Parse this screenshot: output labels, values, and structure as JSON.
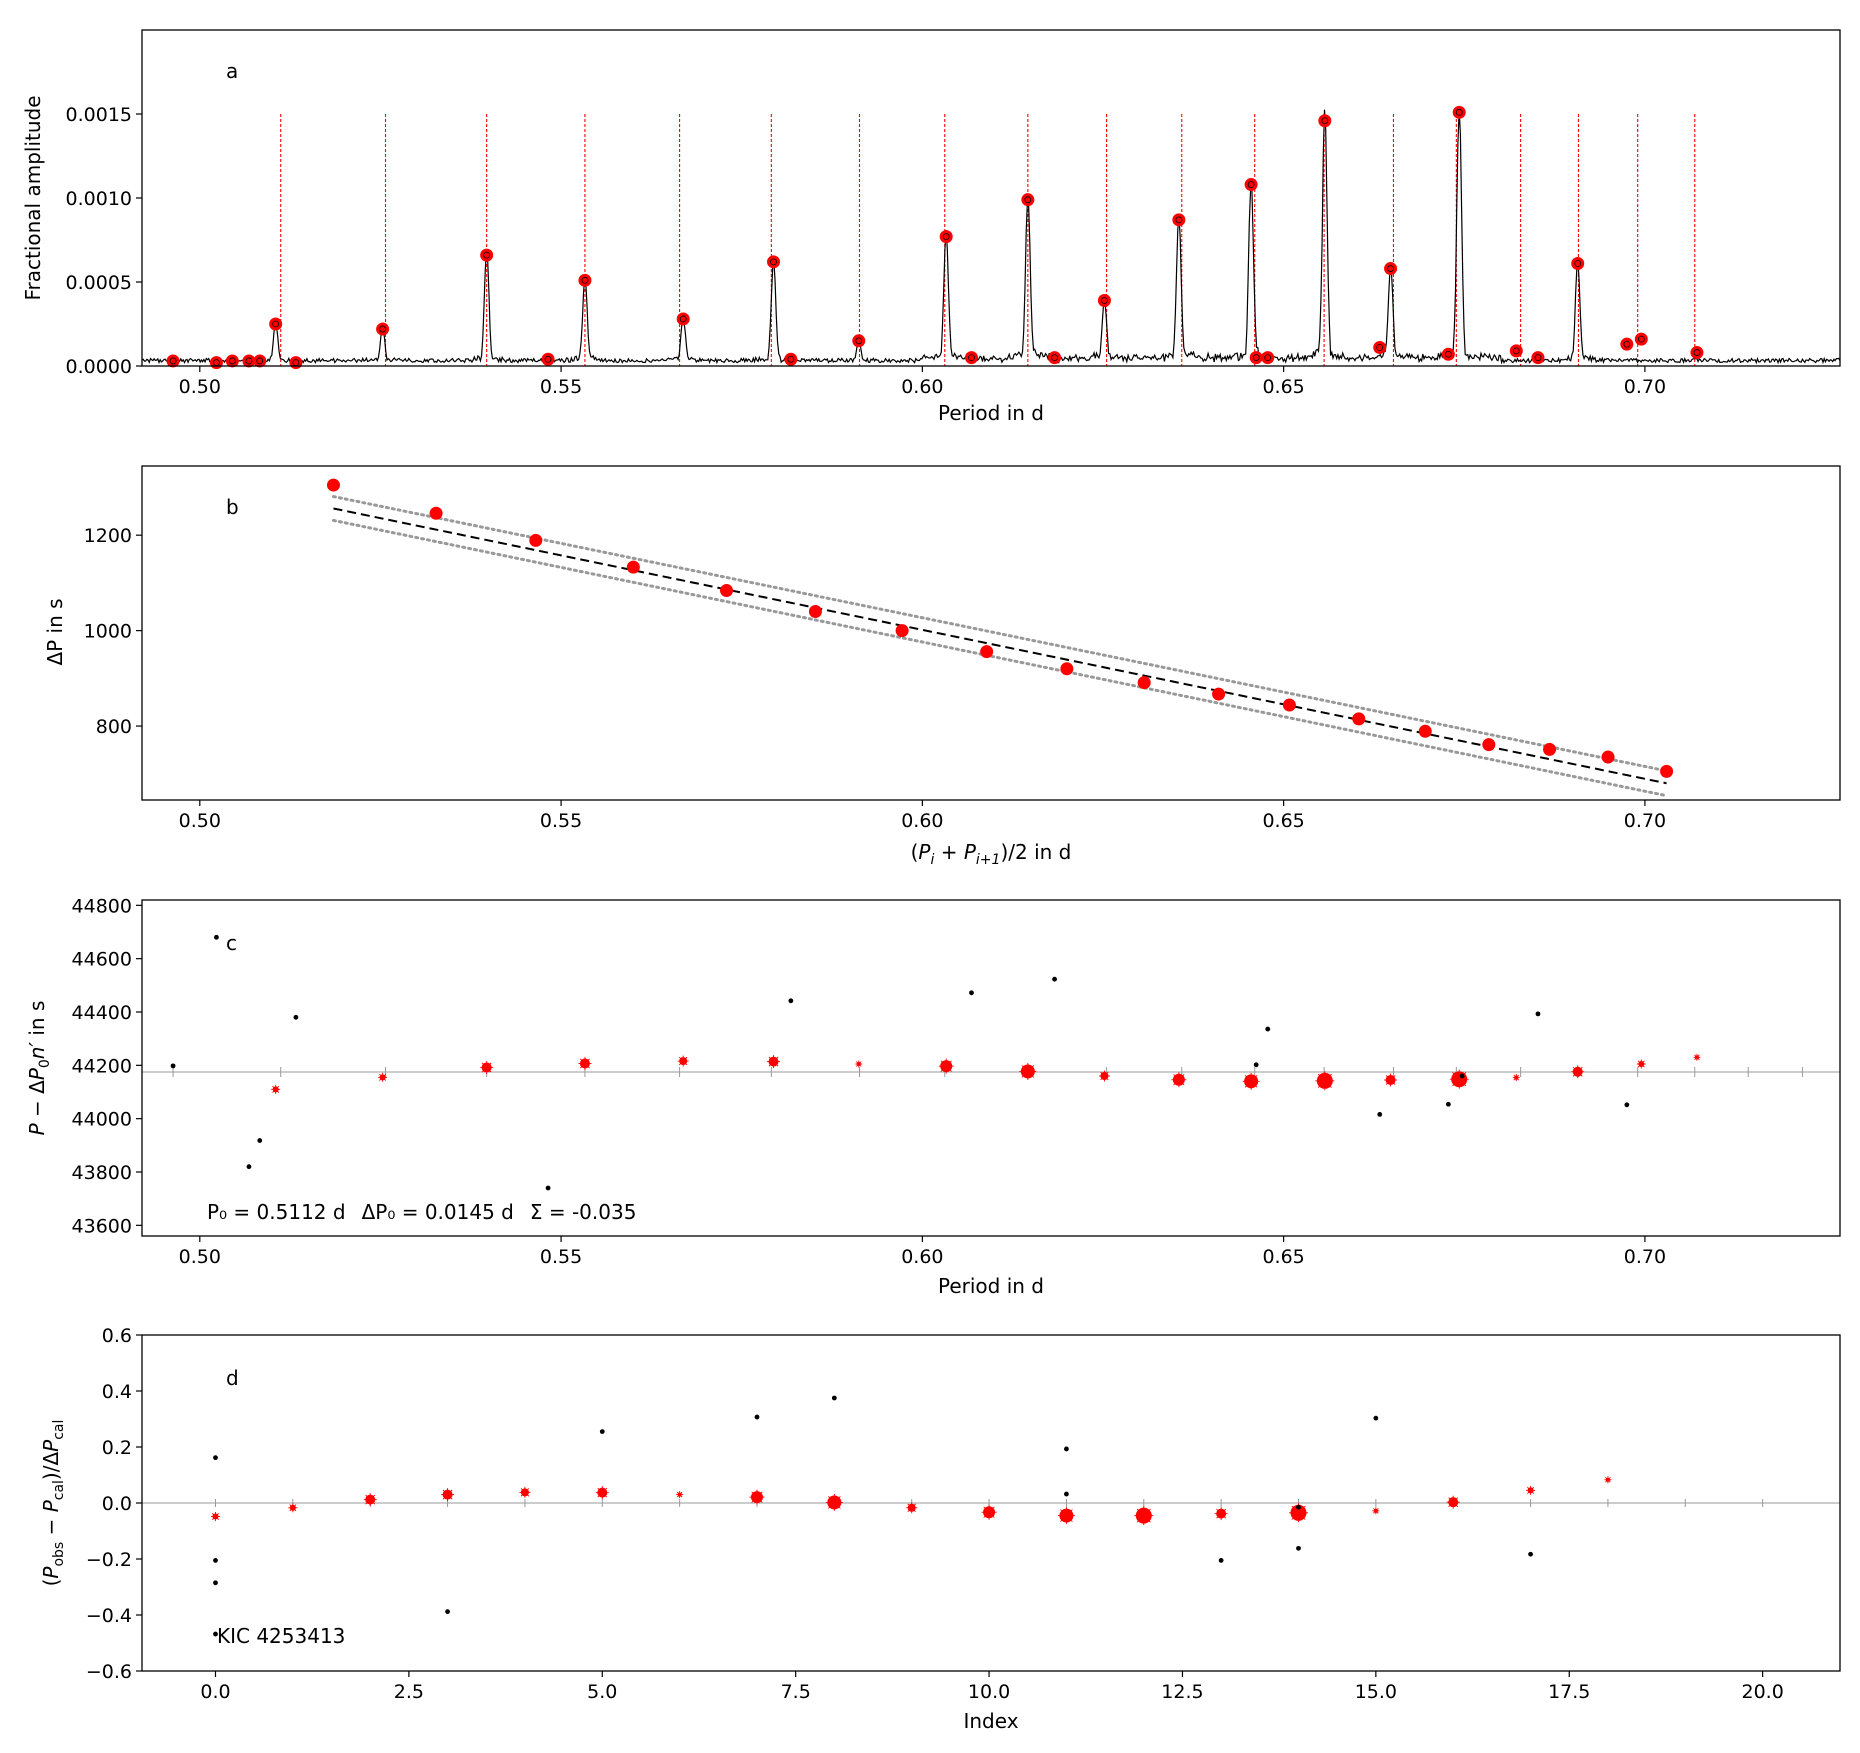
{
  "chart_data": [
    {
      "id": "a",
      "type": "line",
      "panel_label": "a",
      "xlabel": "Period in d",
      "ylabel": "Fractional amplitude",
      "xlim": [
        0.492,
        0.727
      ],
      "ylim": [
        0,
        0.002
      ],
      "xticks": [
        0.5,
        0.55,
        0.6,
        0.65,
        0.7
      ],
      "xtick_labels": [
        "0.50",
        "0.55",
        "0.60",
        "0.65",
        "0.70"
      ],
      "yticks": [
        0.0,
        0.0005,
        0.001,
        0.0015
      ],
      "ytick_labels": [
        "0.0000",
        "0.0005",
        "0.0010",
        "0.0015"
      ],
      "vlines": [
        0.5112,
        0.5257,
        0.5397,
        0.5533,
        0.5664,
        0.5791,
        0.5913,
        0.6031,
        0.6146,
        0.6255,
        0.6359,
        0.646,
        0.6556,
        0.6652,
        0.6739,
        0.6828,
        0.6908,
        0.699,
        0.7069
      ],
      "vline_top": 0.0015,
      "spectrum_peaks": [
        {
          "x": 0.5105,
          "y": 0.00025
        },
        {
          "x": 0.5253,
          "y": 0.00022
        },
        {
          "x": 0.5397,
          "y": 0.00066
        },
        {
          "x": 0.5533,
          "y": 0.00051
        },
        {
          "x": 0.5669,
          "y": 0.00028
        },
        {
          "x": 0.5794,
          "y": 0.00062
        },
        {
          "x": 0.5912,
          "y": 0.00015
        },
        {
          "x": 0.6033,
          "y": 0.00077
        },
        {
          "x": 0.6146,
          "y": 0.00099
        },
        {
          "x": 0.6252,
          "y": 0.00039
        },
        {
          "x": 0.6355,
          "y": 0.00087
        },
        {
          "x": 0.6455,
          "y": 0.00108
        },
        {
          "x": 0.6557,
          "y": 0.00146
        },
        {
          "x": 0.6648,
          "y": 0.00058
        },
        {
          "x": 0.6743,
          "y": 0.00151
        },
        {
          "x": 0.6907,
          "y": 0.00061
        }
      ],
      "circles": [
        {
          "x": 0.4963,
          "y": 3e-05
        },
        {
          "x": 0.5023,
          "y": 2e-05
        },
        {
          "x": 0.5045,
          "y": 3e-05
        },
        {
          "x": 0.5068,
          "y": 3e-05
        },
        {
          "x": 0.5083,
          "y": 3e-05
        },
        {
          "x": 0.5105,
          "y": 0.00025
        },
        {
          "x": 0.5133,
          "y": 2e-05
        },
        {
          "x": 0.5253,
          "y": 0.00022
        },
        {
          "x": 0.5397,
          "y": 0.00066
        },
        {
          "x": 0.5482,
          "y": 4e-05
        },
        {
          "x": 0.5533,
          "y": 0.00051
        },
        {
          "x": 0.5669,
          "y": 0.00028
        },
        {
          "x": 0.5794,
          "y": 0.00062
        },
        {
          "x": 0.5818,
          "y": 4e-05
        },
        {
          "x": 0.5912,
          "y": 0.00015
        },
        {
          "x": 0.6033,
          "y": 0.00077
        },
        {
          "x": 0.6068,
          "y": 5e-05
        },
        {
          "x": 0.6146,
          "y": 0.00099
        },
        {
          "x": 0.6183,
          "y": 5e-05
        },
        {
          "x": 0.6252,
          "y": 0.00039
        },
        {
          "x": 0.6355,
          "y": 0.00087
        },
        {
          "x": 0.6455,
          "y": 0.00108
        },
        {
          "x": 0.6462,
          "y": 5e-05
        },
        {
          "x": 0.6478,
          "y": 5e-05
        },
        {
          "x": 0.6557,
          "y": 0.00146
        },
        {
          "x": 0.6633,
          "y": 0.00011
        },
        {
          "x": 0.6648,
          "y": 0.00058
        },
        {
          "x": 0.6728,
          "y": 7e-05
        },
        {
          "x": 0.6743,
          "y": 0.00151
        },
        {
          "x": 0.6822,
          "y": 9e-05
        },
        {
          "x": 0.6852,
          "y": 5e-05
        },
        {
          "x": 0.6907,
          "y": 0.00061
        },
        {
          "x": 0.6975,
          "y": 0.00013
        },
        {
          "x": 0.6995,
          "y": 0.00016
        },
        {
          "x": 0.7072,
          "y": 8e-05
        }
      ]
    },
    {
      "id": "b",
      "type": "scatter",
      "panel_label": "b",
      "xlabel": "(P_i + P_i+1)/2 in d",
      "ylabel": "ΔP in s",
      "xlim": [
        0.492,
        0.727
      ],
      "ylim": [
        645,
        1345
      ],
      "xticks": [
        0.5,
        0.55,
        0.6,
        0.65,
        0.7
      ],
      "xtick_labels": [
        "0.50",
        "0.55",
        "0.60",
        "0.65",
        "0.70"
      ],
      "yticks": [
        800,
        1000,
        1200
      ],
      "ytick_labels": [
        "800",
        "1000",
        "1200"
      ],
      "points": [
        {
          "x": 0.5185,
          "y": 1305
        },
        {
          "x": 0.5327,
          "y": 1246
        },
        {
          "x": 0.5465,
          "y": 1189
        },
        {
          "x": 0.56,
          "y": 1133
        },
        {
          "x": 0.5729,
          "y": 1084
        },
        {
          "x": 0.5852,
          "y": 1040
        },
        {
          "x": 0.5972,
          "y": 1000
        },
        {
          "x": 0.6089,
          "y": 956
        },
        {
          "x": 0.62,
          "y": 920
        },
        {
          "x": 0.6307,
          "y": 891
        },
        {
          "x": 0.641,
          "y": 867
        },
        {
          "x": 0.6508,
          "y": 844
        },
        {
          "x": 0.6604,
          "y": 815
        },
        {
          "x": 0.6696,
          "y": 789
        },
        {
          "x": 0.6784,
          "y": 761
        },
        {
          "x": 0.6868,
          "y": 751
        },
        {
          "x": 0.6949,
          "y": 735
        },
        {
          "x": 0.703,
          "y": 705
        }
      ],
      "fit": {
        "x": [
          0.5185,
          0.703
        ],
        "y": [
          1256,
          680
        ]
      },
      "band_upper": {
        "x": [
          0.5185,
          0.703
        ],
        "y": [
          1281,
          706
        ]
      },
      "band_lower": {
        "x": [
          0.5185,
          0.703
        ],
        "y": [
          1231,
          654
        ]
      }
    },
    {
      "id": "c",
      "type": "scatter",
      "panel_label": "c",
      "xlabel": "Period in d",
      "ylabel": "P − ΔP0 n′ in s",
      "xlim": [
        0.492,
        0.727
      ],
      "ylim": [
        43560,
        44820
      ],
      "xticks": [
        0.5,
        0.55,
        0.6,
        0.65,
        0.7
      ],
      "xtick_labels": [
        "0.50",
        "0.55",
        "0.60",
        "0.65",
        "0.70"
      ],
      "yticks": [
        43600,
        43800,
        44000,
        44200,
        44400,
        44600,
        44800
      ],
      "ytick_labels": [
        "43600",
        "43800",
        "44000",
        "44200",
        "44400",
        "44600",
        "44800"
      ],
      "hline": 44175,
      "grey_ticks_x": [
        0.4963,
        0.5112,
        0.5257,
        0.5397,
        0.5533,
        0.5664,
        0.5791,
        0.5913,
        0.6031,
        0.6146,
        0.6255,
        0.6359,
        0.646,
        0.6556,
        0.6652,
        0.6739,
        0.6828,
        0.6908,
        0.699,
        0.7069,
        0.7143,
        0.7218
      ],
      "red_points": [
        {
          "x": 0.5105,
          "y": 44110,
          "s": 3
        },
        {
          "x": 0.5253,
          "y": 44155,
          "s": 3
        },
        {
          "x": 0.5397,
          "y": 44192,
          "s": 5
        },
        {
          "x": 0.5533,
          "y": 44207,
          "s": 5
        },
        {
          "x": 0.5669,
          "y": 44216,
          "s": 4
        },
        {
          "x": 0.5794,
          "y": 44214,
          "s": 5
        },
        {
          "x": 0.5912,
          "y": 44205,
          "s": 2
        },
        {
          "x": 0.6033,
          "y": 44197,
          "s": 6
        },
        {
          "x": 0.6146,
          "y": 44177,
          "s": 7
        },
        {
          "x": 0.6252,
          "y": 44160,
          "s": 4
        },
        {
          "x": 0.6355,
          "y": 44146,
          "s": 6
        },
        {
          "x": 0.6455,
          "y": 44140,
          "s": 7
        },
        {
          "x": 0.6557,
          "y": 44142,
          "s": 8
        },
        {
          "x": 0.6648,
          "y": 44145,
          "s": 5
        },
        {
          "x": 0.6743,
          "y": 44148,
          "s": 8
        },
        {
          "x": 0.6822,
          "y": 44154,
          "s": 2
        },
        {
          "x": 0.6907,
          "y": 44176,
          "s": 5
        },
        {
          "x": 0.6995,
          "y": 44205,
          "s": 3
        },
        {
          "x": 0.7072,
          "y": 44230,
          "s": 2
        }
      ],
      "black_points": [
        {
          "x": 0.4963,
          "y": 44198
        },
        {
          "x": 0.5023,
          "y": 44680
        },
        {
          "x": 0.5068,
          "y": 43820
        },
        {
          "x": 0.5083,
          "y": 43918
        },
        {
          "x": 0.5133,
          "y": 44380
        },
        {
          "x": 0.5482,
          "y": 43740
        },
        {
          "x": 0.5818,
          "y": 44442
        },
        {
          "x": 0.6068,
          "y": 44472
        },
        {
          "x": 0.6183,
          "y": 44523
        },
        {
          "x": 0.6462,
          "y": 44202
        },
        {
          "x": 0.6478,
          "y": 44336
        },
        {
          "x": 0.6633,
          "y": 44016
        },
        {
          "x": 0.6728,
          "y": 44054
        },
        {
          "x": 0.6747,
          "y": 44160
        },
        {
          "x": 0.6852,
          "y": 44393
        },
        {
          "x": 0.6975,
          "y": 44052
        }
      ],
      "annotation": {
        "p0": "P₀ = 0.5112 d",
        "dp0": "ΔP₀ = 0.0145 d",
        "sigma": "Σ = -0.035"
      }
    },
    {
      "id": "d",
      "type": "scatter",
      "panel_label": "d",
      "xlabel": "Index",
      "ylabel": "(P_obs − P_cal)/ΔP_cal",
      "xlim": [
        -0.95,
        21.0
      ],
      "ylim": [
        -0.6,
        0.6
      ],
      "xticks": [
        0.0,
        2.5,
        5.0,
        7.5,
        10.0,
        12.5,
        15.0,
        17.5,
        20.0
      ],
      "xtick_labels": [
        "0.0",
        "2.5",
        "5.0",
        "7.5",
        "10.0",
        "12.5",
        "15.0",
        "17.5",
        "20.0"
      ],
      "yticks": [
        -0.6,
        -0.4,
        -0.2,
        0.0,
        0.2,
        0.4,
        0.6
      ],
      "ytick_labels": [
        "−0.6",
        "−0.4",
        "−0.2",
        "0.0",
        "0.2",
        "0.4",
        "0.6"
      ],
      "hline": 0.0,
      "grey_ticks_x": [
        0,
        1,
        2,
        3,
        4,
        5,
        6,
        7,
        8,
        9,
        10,
        11,
        12,
        13,
        14,
        15,
        16,
        17,
        18,
        19,
        20
      ],
      "red_points": [
        {
          "x": 0,
          "y": -0.048,
          "s": 3
        },
        {
          "x": 1,
          "y": -0.017,
          "s": 3
        },
        {
          "x": 2,
          "y": 0.012,
          "s": 5
        },
        {
          "x": 3,
          "y": 0.03,
          "s": 5
        },
        {
          "x": 4,
          "y": 0.038,
          "s": 4
        },
        {
          "x": 5,
          "y": 0.037,
          "s": 5
        },
        {
          "x": 6,
          "y": 0.03,
          "s": 2
        },
        {
          "x": 7,
          "y": 0.021,
          "s": 6
        },
        {
          "x": 8,
          "y": 0.002,
          "s": 7
        },
        {
          "x": 9,
          "y": -0.017,
          "s": 4
        },
        {
          "x": 10,
          "y": -0.033,
          "s": 6
        },
        {
          "x": 11,
          "y": -0.045,
          "s": 7
        },
        {
          "x": 12,
          "y": -0.045,
          "s": 8
        },
        {
          "x": 13,
          "y": -0.038,
          "s": 5
        },
        {
          "x": 14,
          "y": -0.035,
          "s": 8
        },
        {
          "x": 15,
          "y": -0.028,
          "s": 2
        },
        {
          "x": 16,
          "y": 0.003,
          "s": 5
        },
        {
          "x": 17,
          "y": 0.045,
          "s": 3
        },
        {
          "x": 18,
          "y": 0.083,
          "s": 2
        }
      ],
      "black_points": [
        {
          "x": 0,
          "y": 0.162
        },
        {
          "x": 0,
          "y": -0.205
        },
        {
          "x": 0,
          "y": -0.285
        },
        {
          "x": 0,
          "y": -0.468
        },
        {
          "x": 3,
          "y": -0.388
        },
        {
          "x": 5,
          "y": 0.255
        },
        {
          "x": 7,
          "y": 0.307
        },
        {
          "x": 8,
          "y": 0.375
        },
        {
          "x": 11,
          "y": 0.193
        },
        {
          "x": 11,
          "y": 0.032
        },
        {
          "x": 13,
          "y": -0.205
        },
        {
          "x": 14,
          "y": -0.015
        },
        {
          "x": 14,
          "y": -0.162
        },
        {
          "x": 15,
          "y": 0.303
        },
        {
          "x": 17,
          "y": -0.183
        }
      ],
      "annotation": "KIC 4253413"
    }
  ],
  "colors": {
    "red": "#ff0000",
    "black": "#000000",
    "grey": "#999999",
    "spectrum": "#000000"
  }
}
